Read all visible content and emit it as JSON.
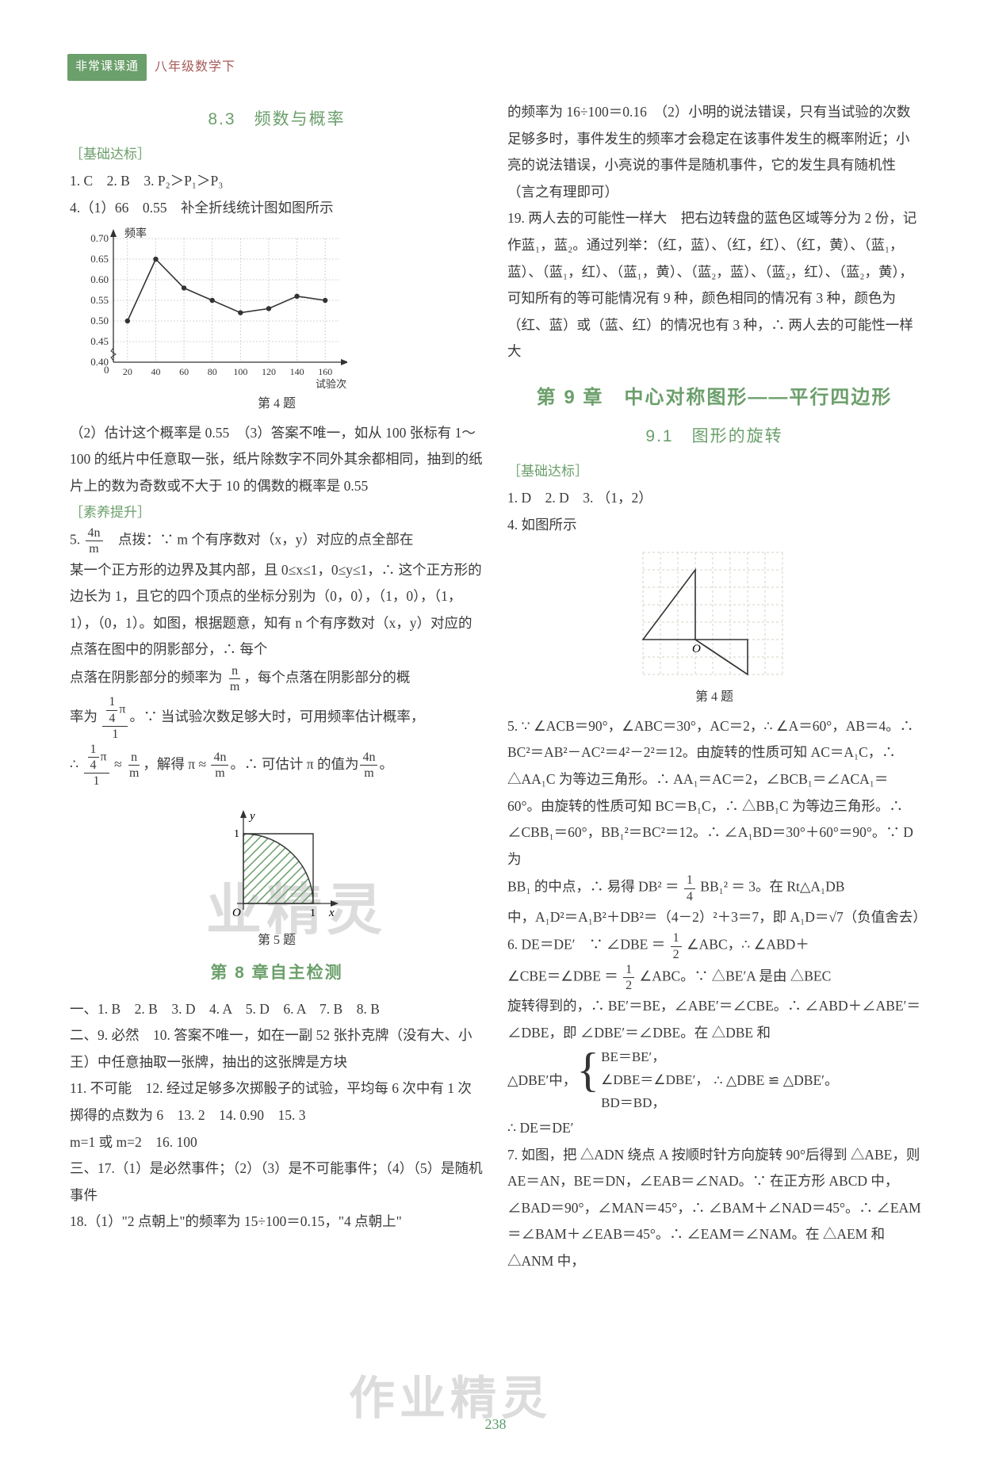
{
  "header": {
    "logo": "非常课课通",
    "sub": "八年级数学下"
  },
  "pagenum": "238",
  "left": {
    "sec83_title": "8.3　频数与概率",
    "basis_label": "［基础达标］",
    "line1": "1. C　2. B　3. P₂＞P₁＞P₃",
    "line4a": "4.（1）66　0.55　补全折线统计图如图所示",
    "chart": {
      "type": "line",
      "ylabel": "频率",
      "xlabel": "试验次数",
      "yticks": [
        0.4,
        0.45,
        0.5,
        0.55,
        0.6,
        0.65,
        0.7
      ],
      "xticks": [
        20,
        40,
        60,
        80,
        100,
        120,
        140,
        160
      ],
      "values": [
        0.5,
        0.65,
        0.58,
        0.55,
        0.52,
        0.53,
        0.56,
        0.55
      ],
      "line_color": "#333333",
      "marker_color": "#333333",
      "grid_color": "#c8c8c8",
      "bg": "#ffffff"
    },
    "fig4_cap": "第 4 题",
    "line4b": "（2）估计这个概率是 0.55　（3）答案不唯一，如从 100 张标有 1～100 的纸片中任意取一张，纸片除数字不同外其余都相同，抽到的纸片上的数为奇数或不大于 10 的偶数的概率是 0.55",
    "lift_label": "［素养提升］",
    "line5a_pre": "5. ",
    "line5a_tail": "　点拨：∵ m 个有序数对（x，y）对应的点全部在",
    "line5b": "某一个正方形的边界及其内部，且 0≤x≤1，0≤y≤1，∴ 这个正方形的边长为 1，且它的四个顶点的坐标分别为（0，0），（1，0），（1，1），（0，1）。如图，根据题意，知有 n 个有序数对（x，y）对应的点落在图中的阴影部分，∴ 每个",
    "line5c_pre": "点落在阴影部分的频率为 ",
    "line5c_tail": "，每个点落在阴影部分的概",
    "line5d_pre": "率为 ",
    "line5d_mid": "。∵ 当试验次数足够大时，可用频率估计概率，",
    "line5e_pre": "∴ ",
    "line5e_mid1": " ≈ ",
    "line5e_mid2": "，解得 π ≈ ",
    "line5e_mid3": "。∴ 可估计 π 的值为",
    "line5e_tail": "。",
    "fig5": {
      "type": "quarter-circle",
      "fill": "#8fae8f",
      "stroke": "#333333",
      "hatch": "#6b9f6b",
      "axes": "#333333"
    },
    "fig5_cap": "第 5 题",
    "sec8_self": "第 8 章自主检测",
    "ln_1": "一、1. B　2. B　3. D　4. A　5. D　6. A　7. B　8. B",
    "ln_2": "二、9. 必然　10. 答案不唯一，如在一副 52 张扑克牌（没有大、小王）中任意抽取一张牌，抽出的这张牌是方块",
    "ln_11": "11. 不可能　12. 经过足够多次掷骰子的试验，平均每 6 次中有 1 次掷得的点数为 6　13. 2　14. 0.90　15. 3",
    "ln_m": "m=1 或 m=2　16. 100",
    "ln_17": "三、17.（1）是必然事件；（2）（3）是不可能事件；（4）（5）是随机事件",
    "ln_18": "18.（1）\"2 点朝上\"的频率为 15÷100＝0.15，\"4 点朝上\""
  },
  "right": {
    "cont18": "的频率为 16÷100＝0.16　（2）小明的说法错误，只有当试验的次数足够多时，事件发生的频率才会稳定在该事件发生的概率附近；小亮的说法错误，小亮说的事件是随机事件，它的发生具有随机性（言之有理即可）",
    "ln19": "19. 两人去的可能性一样大　把右边转盘的蓝色区域等分为 2 份，记作蓝₁，蓝₂。通过列举：（红，蓝）、（红，红）、（红，黄）、（蓝₁，蓝）、（蓝₁，红）、（蓝₁，黄）、（蓝₂，蓝）、（蓝₂，红）、（蓝₂，黄），可知所有的等可能情况有 9 种，颜色相同的情况有 3 种，颜色为（红、蓝）或（蓝、红）的情况也有 3 种，∴ 两人去的可能性一样大",
    "ch9_title": "第 9 章　中心对称图形——平行四边形",
    "sec91_title": "9.1　图形的旋转",
    "basis_label": "［基础达标］",
    "ln1": "1. D　2. D　3. （1，2）",
    "ln4": "4. 如图所示",
    "fig4": {
      "type": "rotation-triangles",
      "grid_color": "#d9d2c6",
      "stroke": "#333333",
      "label_O": "O"
    },
    "fig4_cap": "第 4 题",
    "ln5": "5. ∵ ∠ACB＝90°，∠ABC＝30°，AC＝2，∴ ∠A＝60°，AB＝4。∴ BC²＝AB²－AC²＝4²－2²＝12。由旋转的性质可知 AC＝A₁C，∴ △AA₁C 为等边三角形。∴ AA₁＝AC＝2，∠BCB₁＝∠ACA₁＝60°。由旋转的性质可知 BC＝B₁C，∴ △BB₁C 为等边三角形。∴ ∠CBB₁＝60°，BB₁²＝BC²＝12。∴ ∠A₁BD＝30°＋60°＝90°。∵ D 为",
    "ln5b_pre": "BB₁ 的中点，∴ 易得 DB² ＝ ",
    "ln5b_mid": " BB₁² ＝ 3。在 Rt△A₁DB",
    "ln5c": "中，A₁D²＝A₁B²＋DB²＝（4－2）²＋3＝7，即 A₁D＝√7（负值舍去）",
    "ln6a": "6. DE＝DE′　∵ ∠DBE ＝ ",
    "ln6a_tail": " ∠ABC，∴ ∠ABD＋",
    "ln6b": "∠CBE＝∠DBE ＝ ",
    "ln6b_tail": " ∠ABC。∵ △BE′A 是由 △BEC",
    "ln6c": "旋转得到的，∴ BE′＝BE，∠ABE′＝∠CBE。∴ ∠ABD＋∠ABE′＝∠DBE，即 ∠DBE′＝∠DBE。在 △DBE 和",
    "brace_a": "BE＝BE′，",
    "brace_b": "∠DBE＝∠DBE′，",
    "brace_c": "BD＝BD，",
    "brace_pre": "△DBE′中，",
    "brace_tail": "∴ △DBE ≌ △DBE′。",
    "ln6e": "∴ DE＝DE′",
    "ln7": "7. 如图，把 △ADN 绕点 A 按顺时针方向旋转 90°后得到 △ABE，则 AE＝AN，BE＝DN，∠EAB＝∠NAD。∵ 在正方形 ABCD 中，∠BAD＝90°，∠MAN＝45°，∴ ∠BAM＋∠NAD＝45°。∴ ∠EAM＝∠BAM＋∠EAB＝45°。∴ ∠EAM＝∠NAM。在 △AEM 和 △ANM 中，"
  },
  "watermarks": {
    "w1": "业精灵",
    "w2": "作业精灵"
  }
}
